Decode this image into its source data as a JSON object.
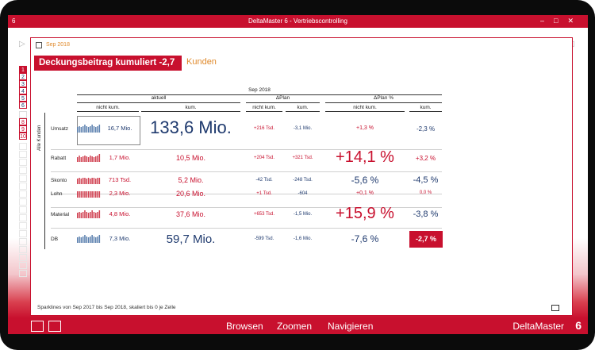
{
  "window": {
    "app_num": "6",
    "title": "DeltaMaster 6 - Vertriebscontrolling"
  },
  "report": {
    "period_tab": "Sep 2018",
    "title": "Deckungsbeitrag kumuliert -2,7 %",
    "subtitle": "Kunden",
    "dim_label": "Alle Kunden",
    "status": "Sparklines von Sep 2017 bis Sep 2018, skaliert bis 0 je Zelle"
  },
  "side_buttons": [
    "1",
    "2",
    "3",
    "4",
    "5",
    "6",
    "",
    "8",
    "9",
    "10"
  ],
  "columns": {
    "period": "Sep 2018",
    "aktuell": "aktuell",
    "dplan": "ΔPlan",
    "dplan_pct": "ΔPlan %",
    "nicht_kum": "nicht kum.",
    "kum": "kum."
  },
  "rows": [
    {
      "label": "Umsatz",
      "spark_val": "16,7 Mio.",
      "kum": "133,6 Mio.",
      "dp_nk": "+216 Tsd.",
      "dp_k": "-3,1 Mio.",
      "pct_nk": "+1,3 %",
      "pct_k": "-2,3 %",
      "spark": [
        6,
        7,
        6,
        7,
        8,
        7,
        6,
        7,
        8,
        7,
        6,
        7,
        8
      ]
    },
    {
      "label": "Rabatt",
      "spark_val": "1,7 Mio.",
      "kum": "10,5 Mio.",
      "dp_nk": "+204 Tsd.",
      "dp_k": "+321 Tsd.",
      "pct_nk": "+14,1 %",
      "pct_k": "+3,2 %",
      "spark": [
        5,
        7,
        5,
        6,
        7,
        6,
        5,
        7,
        6,
        5,
        6,
        7,
        8
      ]
    },
    {
      "label": "Skonto",
      "spark_val": "713 Tsd.",
      "kum": "5,2 Mio.",
      "dp_nk": "-42 Tsd.",
      "dp_k": "-248 Tsd.",
      "pct_nk": "-5,6 %",
      "pct_k": "-4,5 %",
      "spark": [
        6,
        7,
        6,
        7,
        7,
        6,
        7,
        6,
        7,
        7,
        6,
        7,
        7
      ]
    },
    {
      "label": "Lohn",
      "spark_val": "2,3 Mio.",
      "kum": "20,6 Mio.",
      "dp_nk": "+1 Tsd.",
      "dp_k": "-604",
      "pct_nk": "+0,1 %",
      "pct_k": "0,0 %",
      "spark": [
        7,
        7,
        7,
        7,
        7,
        7,
        7,
        7,
        7,
        7,
        7,
        7,
        7
      ]
    },
    {
      "label": "Material",
      "spark_val": "4,8 Mio.",
      "kum": "37,6 Mio.",
      "dp_nk": "+653 Tsd.",
      "dp_k": "-1,5 Mio.",
      "pct_nk": "+15,9 %",
      "pct_k": "-3,8 %",
      "spark": [
        6,
        7,
        6,
        7,
        8,
        7,
        6,
        7,
        8,
        7,
        6,
        7,
        8
      ]
    },
    {
      "label": "DB",
      "spark_val": "7,3 Mio.",
      "kum": "59,7 Mio.",
      "dp_nk": "-599 Tsd.",
      "dp_k": "-1,6 Mio.",
      "pct_nk": "-7,6 %",
      "pct_k": "-2,7 %",
      "spark": [
        6,
        7,
        6,
        7,
        8,
        7,
        6,
        7,
        8,
        7,
        6,
        7,
        8
      ]
    }
  ],
  "footer": {
    "browse": "Browsen",
    "zoom": "Zoomen",
    "navigate": "Navigieren",
    "brand": "DeltaMaster",
    "brand_num": "6"
  },
  "colors": {
    "accent": "#c8102e",
    "positive_text": "#1f3a6e",
    "negative_text": "#c8102e",
    "subtitle": "#e08a2c"
  }
}
